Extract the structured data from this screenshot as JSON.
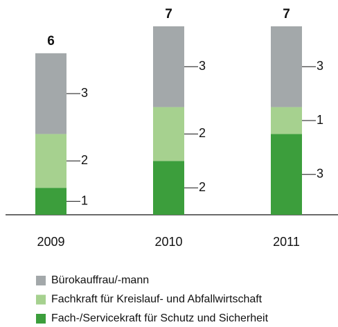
{
  "chart_data": {
    "type": "stacked_bar",
    "categories": [
      "2009",
      "2010",
      "2011"
    ],
    "series": [
      {
        "name": "Bürokauffrau/-mann",
        "color": "#a3a8aa",
        "values": [
          3,
          3,
          3
        ]
      },
      {
        "name": "Fachkraft für Kreislauf- und Abfallwirtschaft",
        "color": "#a6d18f",
        "values": [
          2,
          2,
          1
        ]
      },
      {
        "name": "Fach-/Servicekraft für Schutz und Sicherheit",
        "color": "#3c9e3c",
        "values": [
          1,
          2,
          3
        ]
      }
    ],
    "totals": [
      6,
      7,
      7
    ]
  }
}
